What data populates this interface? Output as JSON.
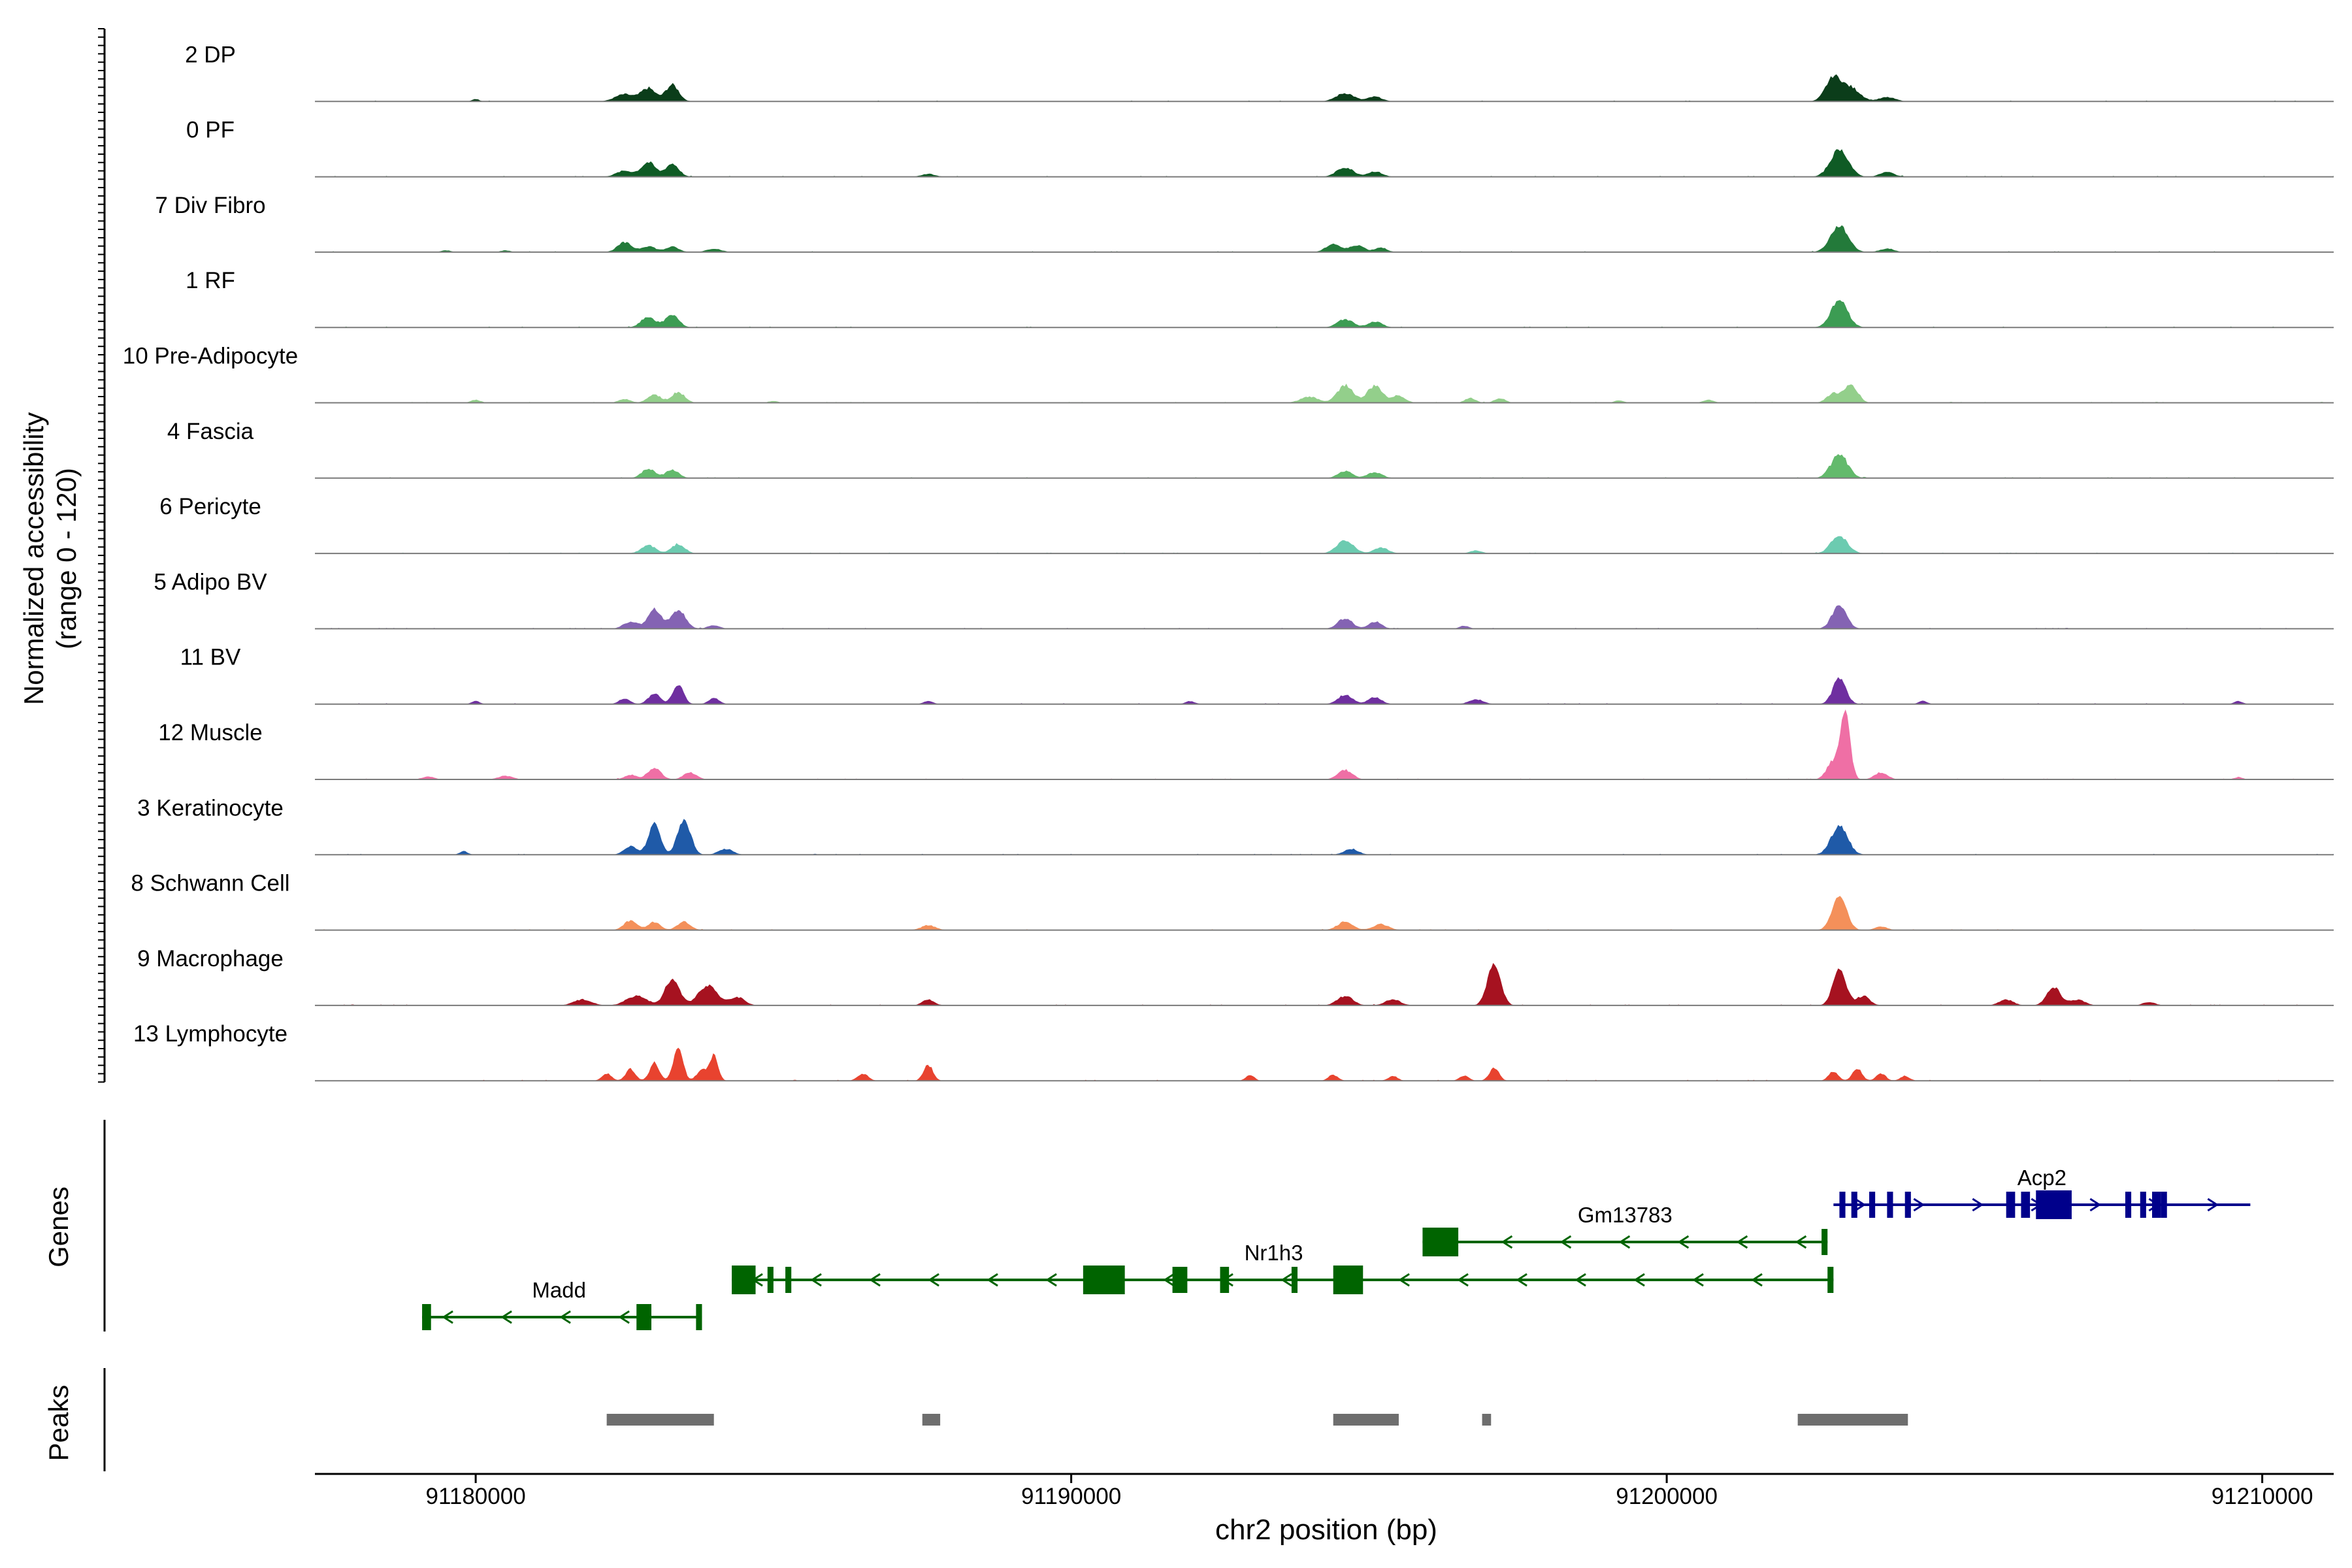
{
  "chart_data": {
    "type": "area",
    "title": "",
    "ylabel_line1": "Normalized accessibility",
    "ylabel_line2": "(range 0 - 120)",
    "xlabel": "chr2 position (bp)",
    "xlim": [
      91177300,
      91211200
    ],
    "ylim": [
      0,
      120
    ],
    "xticks": [
      91180000,
      91190000,
      91200000,
      91210000
    ],
    "xtick_labels": [
      "91180000",
      "91190000",
      "91200000",
      "91210000"
    ],
    "tracks": [
      {
        "label": "2 DP",
        "color": "#0b3d1a",
        "peaks": [
          [
            91180000,
            4,
            60
          ],
          [
            91182500,
            12,
            160
          ],
          [
            91182900,
            22,
            120
          ],
          [
            91183300,
            28,
            110
          ],
          [
            91194600,
            14,
            150
          ],
          [
            91195100,
            8,
            120
          ],
          [
            91202800,
            40,
            130
          ],
          [
            91203100,
            22,
            150
          ],
          [
            91203700,
            7,
            140
          ]
        ]
      },
      {
        "label": "0 PF",
        "color": "#0f5b25",
        "peaks": [
          [
            91182500,
            10,
            140
          ],
          [
            91182900,
            24,
            120
          ],
          [
            91183300,
            22,
            110
          ],
          [
            91187600,
            5,
            110
          ],
          [
            91194600,
            16,
            140
          ],
          [
            91195100,
            9,
            120
          ],
          [
            91202900,
            46,
            150
          ],
          [
            91203700,
            8,
            120
          ]
        ]
      },
      {
        "label": "7 Div Fibro",
        "color": "#237a3a",
        "peaks": [
          [
            91179500,
            3,
            80
          ],
          [
            91180500,
            3,
            80
          ],
          [
            91182500,
            16,
            120
          ],
          [
            91182900,
            10,
            120
          ],
          [
            91183300,
            9,
            110
          ],
          [
            91184000,
            6,
            120
          ],
          [
            91194400,
            14,
            120
          ],
          [
            91194800,
            12,
            120
          ],
          [
            91195200,
            8,
            100
          ],
          [
            91202900,
            44,
            150
          ],
          [
            91203700,
            6,
            120
          ]
        ]
      },
      {
        "label": "1 RF",
        "color": "#3c9c53",
        "peaks": [
          [
            91182900,
            18,
            120
          ],
          [
            91183300,
            22,
            110
          ],
          [
            91194600,
            14,
            130
          ],
          [
            91195100,
            10,
            120
          ],
          [
            91202900,
            46,
            140
          ]
        ]
      },
      {
        "label": "10 Pre-Adipocyte",
        "color": "#93cf8b",
        "peaks": [
          [
            91180000,
            5,
            80
          ],
          [
            91182500,
            6,
            100
          ],
          [
            91183000,
            14,
            110
          ],
          [
            91183400,
            18,
            110
          ],
          [
            91185000,
            3,
            80
          ],
          [
            91194000,
            10,
            150
          ],
          [
            91194600,
            30,
            130
          ],
          [
            91195100,
            28,
            130
          ],
          [
            91195500,
            12,
            110
          ],
          [
            91196700,
            8,
            90
          ],
          [
            91197200,
            8,
            90
          ],
          [
            91202800,
            16,
            110
          ],
          [
            91203100,
            30,
            110
          ],
          [
            91200700,
            5,
            90
          ],
          [
            91199200,
            4,
            80
          ]
        ]
      },
      {
        "label": "4 Fascia",
        "color": "#63ba6c",
        "peaks": [
          [
            91182900,
            16,
            110
          ],
          [
            91183300,
            14,
            110
          ],
          [
            91194600,
            12,
            120
          ],
          [
            91195100,
            10,
            120
          ],
          [
            91202900,
            40,
            140
          ]
        ]
      },
      {
        "label": "6 Pericyte",
        "color": "#6ccbb0",
        "peaks": [
          [
            91182900,
            14,
            120
          ],
          [
            91183400,
            16,
            110
          ],
          [
            91194600,
            22,
            140
          ],
          [
            91195200,
            10,
            120
          ],
          [
            91196800,
            5,
            100
          ],
          [
            91202900,
            30,
            140
          ]
        ]
      },
      {
        "label": "5 Adipo BV",
        "color": "#8463b3",
        "peaks": [
          [
            91182600,
            12,
            120
          ],
          [
            91183000,
            34,
            110
          ],
          [
            91183400,
            32,
            120
          ],
          [
            91184000,
            6,
            100
          ],
          [
            91194600,
            18,
            120
          ],
          [
            91195100,
            12,
            110
          ],
          [
            91196600,
            5,
            80
          ],
          [
            91202900,
            40,
            120
          ]
        ]
      },
      {
        "label": "11 BV",
        "color": "#6f2fa0",
        "peaks": [
          [
            91180000,
            5,
            70
          ],
          [
            91182500,
            10,
            90
          ],
          [
            91183000,
            18,
            100
          ],
          [
            91183400,
            32,
            90
          ],
          [
            91184000,
            10,
            90
          ],
          [
            91187600,
            5,
            80
          ],
          [
            91192000,
            5,
            80
          ],
          [
            91194600,
            16,
            120
          ],
          [
            91195100,
            12,
            110
          ],
          [
            91196800,
            8,
            120
          ],
          [
            91202900,
            44,
            110
          ],
          [
            91204300,
            6,
            70
          ],
          [
            91209600,
            5,
            70
          ]
        ]
      },
      {
        "label": "12 Muscle",
        "color": "#ef6fa5",
        "peaks": [
          [
            91179200,
            5,
            100
          ],
          [
            91180500,
            6,
            120
          ],
          [
            91182600,
            8,
            100
          ],
          [
            91183000,
            20,
            110
          ],
          [
            91183600,
            12,
            110
          ],
          [
            91194600,
            16,
            120
          ],
          [
            91202800,
            30,
            110
          ],
          [
            91203000,
            110,
            80
          ],
          [
            91203600,
            12,
            110
          ],
          [
            91209600,
            4,
            70
          ]
        ]
      },
      {
        "label": "3 Keratinocyte",
        "color": "#1f5aa8",
        "peaks": [
          [
            91179800,
            6,
            70
          ],
          [
            91182600,
            14,
            110
          ],
          [
            91183000,
            52,
            100
          ],
          [
            91183500,
            58,
            110
          ],
          [
            91184200,
            10,
            120
          ],
          [
            91194700,
            10,
            120
          ],
          [
            91202900,
            48,
            140
          ]
        ]
      },
      {
        "label": "8 Schwann Cell",
        "color": "#f4905a",
        "peaks": [
          [
            91182600,
            16,
            110
          ],
          [
            91183000,
            14,
            100
          ],
          [
            91183500,
            14,
            110
          ],
          [
            91187600,
            8,
            120
          ],
          [
            91194600,
            14,
            130
          ],
          [
            91195200,
            10,
            130
          ],
          [
            91202900,
            56,
            120
          ],
          [
            91203600,
            6,
            100
          ]
        ]
      },
      {
        "label": "9 Macrophage",
        "color": "#a61220",
        "peaks": [
          [
            91181800,
            10,
            150
          ],
          [
            91182700,
            16,
            170
          ],
          [
            91183300,
            44,
            120
          ],
          [
            91183900,
            34,
            160
          ],
          [
            91184400,
            14,
            120
          ],
          [
            91187600,
            10,
            100
          ],
          [
            91194600,
            16,
            130
          ],
          [
            91195400,
            10,
            130
          ],
          [
            91197100,
            70,
            110
          ],
          [
            91202900,
            60,
            110
          ],
          [
            91203300,
            16,
            110
          ],
          [
            91205700,
            10,
            120
          ],
          [
            91206500,
            30,
            120
          ],
          [
            91206900,
            10,
            120
          ],
          [
            91208100,
            6,
            100
          ]
        ]
      },
      {
        "label": "13 Lymphocyte",
        "color": "#e8432f",
        "peaks": [
          [
            91182200,
            12,
            80
          ],
          [
            91182600,
            20,
            80
          ],
          [
            91183000,
            30,
            80
          ],
          [
            91183400,
            56,
            80
          ],
          [
            91183800,
            18,
            90
          ],
          [
            91184000,
            42,
            70
          ],
          [
            91186500,
            12,
            90
          ],
          [
            91187600,
            26,
            80
          ],
          [
            91193000,
            10,
            70
          ],
          [
            91194400,
            10,
            80
          ],
          [
            91195400,
            8,
            80
          ],
          [
            91196600,
            8,
            80
          ],
          [
            91197100,
            22,
            80
          ],
          [
            91202800,
            16,
            80
          ],
          [
            91203200,
            20,
            80
          ],
          [
            91203600,
            12,
            80
          ],
          [
            91204000,
            8,
            80
          ]
        ]
      }
    ],
    "genes_label": "Genes",
    "genes": [
      {
        "name": "Madd",
        "color": "#006400",
        "strand": "-",
        "start": 91179100,
        "end": 91183800,
        "row": 2,
        "label_at": 91181400,
        "exons": [
          [
            91179100,
            91179250
          ],
          [
            91182700,
            91182950
          ],
          [
            91183700,
            91183800
          ]
        ]
      },
      {
        "name": "Nr1h3",
        "color": "#006400",
        "strand": "-",
        "start": 91184300,
        "end": 91202800,
        "row": 1,
        "label_at": 91193400,
        "exons": [
          [
            91184300,
            91184700
          ],
          [
            91184900,
            91185000
          ],
          [
            91185200,
            91185300
          ],
          [
            91190200,
            91190900
          ],
          [
            91191700,
            91191950
          ],
          [
            91192500,
            91192650
          ],
          [
            91193700,
            91193800
          ],
          [
            91194400,
            91194900
          ],
          [
            91202700,
            91202800
          ]
        ]
      },
      {
        "name": "Gm13783",
        "color": "#006400",
        "strand": "-",
        "start": 91195900,
        "end": 91202700,
        "row": 0,
        "label_at": 91199300,
        "exons": [
          [
            91195900,
            91196500
          ],
          [
            91202600,
            91202700
          ]
        ]
      },
      {
        "name": "Acp2",
        "color": "#00008b",
        "strand": "+",
        "start": 91202800,
        "end": 91209800,
        "row": -1,
        "label_at": 91206300,
        "exons": [
          [
            91202900,
            91203000
          ],
          [
            91203100,
            91203200
          ],
          [
            91203400,
            91203500
          ],
          [
            91203700,
            91203800
          ],
          [
            91204000,
            91204100
          ],
          [
            91205700,
            91205850
          ],
          [
            91205950,
            91206100
          ],
          [
            91206200,
            91206800
          ],
          [
            91207700,
            91207800
          ],
          [
            91207950,
            91208050
          ],
          [
            91208150,
            91208300
          ],
          [
            91208300,
            91208400
          ]
        ]
      }
    ],
    "peaks_label": "Peaks",
    "peak_regions": [
      [
        91182200,
        91184000
      ],
      [
        91187500,
        91187800
      ],
      [
        91194400,
        91195500
      ],
      [
        91196900,
        91197050
      ],
      [
        91202200,
        91204050
      ]
    ]
  }
}
